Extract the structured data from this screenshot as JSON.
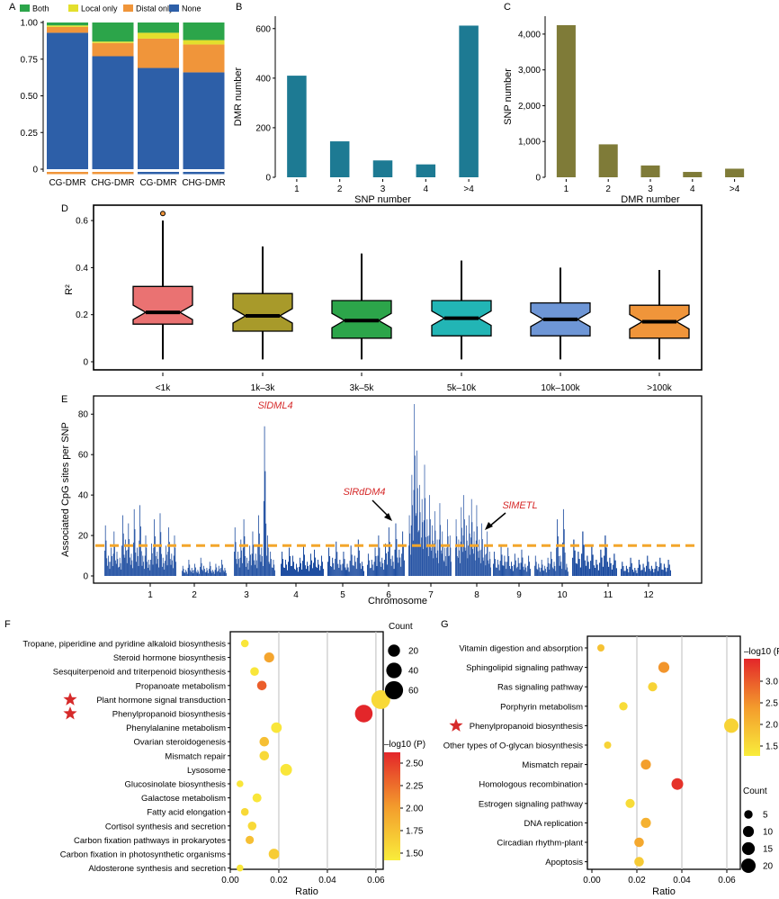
{
  "panels": {
    "A": "A",
    "B": "B",
    "C": "C",
    "D": "D",
    "E": "E",
    "F": "F",
    "G": "G"
  },
  "chart_data": [
    {
      "panel": "A",
      "type": "bar",
      "stacked": true,
      "legend": [
        "Both",
        "Local only",
        "Distal only",
        "None"
      ],
      "legend_placement": "top",
      "colors": {
        "Both": "#2ca54a",
        "Local only": "#e3df2d",
        "Distal only": "#f0953a",
        "None": "#2d5fa8"
      },
      "categories": [
        "CG-DMR",
        "CHG-DMR",
        "CG-DMR",
        "CHG-DMR"
      ],
      "group_underline_colors": [
        "#f0953a",
        "#f0953a",
        "#2d5fa8",
        "#2d5fa8"
      ],
      "series": [
        {
          "name": "None",
          "values": [
            0.93,
            0.77,
            0.69,
            0.66
          ]
        },
        {
          "name": "Distal only",
          "values": [
            0.04,
            0.09,
            0.2,
            0.19
          ]
        },
        {
          "name": "Local only",
          "values": [
            0.01,
            0.01,
            0.04,
            0.03
          ]
        },
        {
          "name": "Both",
          "values": [
            0.02,
            0.13,
            0.07,
            0.12
          ]
        }
      ],
      "ylim": [
        0,
        1
      ],
      "yticks": [
        "0",
        "0.25",
        "0.50",
        "0.75",
        "1.00"
      ]
    },
    {
      "panel": "B",
      "type": "bar",
      "color": "#1d7a93",
      "categories": [
        "1",
        "2",
        "3",
        "4",
        ">4"
      ],
      "values": [
        410,
        145,
        68,
        52,
        612
      ],
      "xlabel": "SNP number",
      "ylabel": "DMR number",
      "ylim": [
        0,
        650
      ],
      "yticks": [
        "0",
        "200",
        "400",
        "600"
      ]
    },
    {
      "panel": "C",
      "type": "bar",
      "color": "#7f7b38",
      "categories": [
        "1",
        "2",
        "3",
        "4",
        ">4"
      ],
      "values": [
        4250,
        920,
        330,
        150,
        240
      ],
      "xlabel": "DMR number",
      "ylabel": "SNP number",
      "ylim": [
        0,
        4500
      ],
      "yticks": [
        "0",
        "1,000",
        "2,000",
        "3,000",
        "4,000"
      ]
    },
    {
      "panel": "D",
      "type": "box",
      "ylabel": "R²",
      "ylim": [
        0,
        0.65
      ],
      "yticks": [
        "0",
        "0.2",
        "0.4",
        "0.6"
      ],
      "categories": [
        "<1k",
        "1k–3k",
        "3k–5k",
        "5k–10k",
        "10k–100k",
        ">100k"
      ],
      "colors": [
        "#ea7272",
        "#a89a2a",
        "#2ca54a",
        "#22b5b5",
        "#6e96d6",
        "#f0953a"
      ],
      "boxes": [
        {
          "min": 0.01,
          "q1": 0.16,
          "median": 0.21,
          "q3": 0.32,
          "max": 0.6
        },
        {
          "min": 0.01,
          "q1": 0.13,
          "median": 0.195,
          "q3": 0.29,
          "max": 0.49
        },
        {
          "min": 0.01,
          "q1": 0.1,
          "median": 0.175,
          "q3": 0.26,
          "max": 0.46
        },
        {
          "min": 0.01,
          "q1": 0.11,
          "median": 0.185,
          "q3": 0.26,
          "max": 0.43
        },
        {
          "min": 0.01,
          "q1": 0.11,
          "median": 0.18,
          "q3": 0.25,
          "max": 0.4
        },
        {
          "min": 0.01,
          "q1": 0.1,
          "median": 0.17,
          "q3": 0.24,
          "max": 0.39
        }
      ],
      "outliers": [
        {
          "group": 0,
          "value": 0.63
        }
      ]
    },
    {
      "panel": "E",
      "type": "bar",
      "chart_style": "manhattan",
      "color": "#1f4ea1",
      "xlabel": "Chromosome",
      "ylabel": "Associated CpG sites per SNP",
      "ylim": [
        0,
        85
      ],
      "yticks": [
        "0",
        "20",
        "40",
        "60",
        "80"
      ],
      "categories": [
        "1",
        "2",
        "3",
        "4",
        "5",
        "6",
        "7",
        "8",
        "9",
        "10",
        "11",
        "12"
      ],
      "threshold": 15,
      "threshold_color": "#f3a62b",
      "peaks": [
        {
          "chromosome": "1",
          "values": [
            25,
            10,
            14,
            22,
            12,
            9,
            30,
            18,
            26,
            11,
            33,
            14,
            35,
            10,
            20,
            8,
            16,
            28,
            12,
            31,
            9,
            15,
            24,
            11,
            20
          ]
        },
        {
          "chromosome": "2",
          "values": [
            5,
            3,
            8,
            4,
            6,
            3,
            9,
            5,
            4,
            7,
            3,
            6,
            5,
            8,
            4
          ]
        },
        {
          "chromosome": "3",
          "values": [
            24,
            12,
            18,
            28,
            9,
            15,
            22,
            11,
            30,
            14,
            74,
            20,
            12,
            8
          ]
        },
        {
          "chromosome": "4",
          "values": [
            12,
            8,
            14,
            10,
            6,
            9,
            15,
            7,
            11,
            13,
            8,
            10
          ]
        },
        {
          "chromosome": "5",
          "values": [
            14,
            9,
            17,
            8,
            12,
            6,
            15,
            10,
            18,
            7
          ]
        },
        {
          "chromosome": "6",
          "values": [
            11,
            8,
            14,
            20,
            9,
            16,
            24,
            10,
            26,
            13,
            22
          ]
        },
        {
          "chromosome": "7",
          "values": [
            30,
            50,
            85,
            62,
            45,
            38,
            55,
            28,
            40,
            25,
            32,
            18,
            36,
            22,
            14,
            28,
            20
          ]
        },
        {
          "chromosome": "8",
          "values": [
            28,
            18,
            34,
            40,
            25,
            30,
            38,
            22,
            35,
            18,
            26,
            15,
            22,
            12
          ]
        },
        {
          "chromosome": "9",
          "values": [
            12,
            8,
            15,
            10,
            14,
            7,
            11,
            9,
            13,
            6,
            10
          ]
        },
        {
          "chromosome": "10",
          "values": [
            10,
            6,
            8,
            5,
            9,
            12,
            7,
            28,
            10,
            33,
            6
          ]
        },
        {
          "chromosome": "11",
          "values": [
            18,
            12,
            22,
            10,
            15,
            8,
            13,
            20,
            9,
            11
          ]
        },
        {
          "chromosome": "12",
          "values": [
            7,
            5,
            9,
            4,
            8,
            6,
            10,
            5,
            7,
            9,
            6,
            8
          ]
        }
      ],
      "annotations": [
        {
          "text": "SlDML4",
          "chromosome": "3",
          "value": 74
        },
        {
          "text": "SlRdDM4",
          "chromosome": "6",
          "value": 25
        },
        {
          "text": "SlMETL",
          "chromosome": "8",
          "value": 22
        }
      ],
      "annotation_color": "#d62a2a"
    },
    {
      "panel": "F",
      "type": "scatter",
      "chart_style": "bubble",
      "xlabel": "Ratio",
      "xlim": [
        0,
        0.063
      ],
      "xticks": [
        "0.00",
        "0.02",
        "0.04",
        "0.06"
      ],
      "categories": [
        "Tropane, piperidine and pyridine alkaloid biosynthesis",
        "Steroid hormone biosynthesis",
        "Sesquiterpenoid and triterpenoid biosynthesis",
        "Propanoate metabolism",
        "Plant hormone signal transduction",
        "Phenylpropanoid biosynthesis",
        "Phenylalanine metabolism",
        "Ovarian steroidogenesis",
        "Mismatch repair",
        "Lysosome",
        "Glucosinolate biosynthesis",
        "Galactose metabolism",
        "Fatty acid elongation",
        "Cortisol synthesis and secretion",
        "Carbon fixation pathways in prokaryotes",
        "Carbon fixation in photosynthetic organisms",
        "Aldosterone synthesis and secretion"
      ],
      "starred": [
        "Plant hormone signal transduction",
        "Phenylpropanoid biosynthesis"
      ],
      "ratio": [
        0.006,
        0.016,
        0.01,
        0.013,
        0.062,
        0.055,
        0.019,
        0.014,
        0.014,
        0.023,
        0.004,
        0.011,
        0.006,
        0.009,
        0.008,
        0.018,
        0.004
      ],
      "count": [
        5,
        12,
        7,
        10,
        65,
        55,
        14,
        10,
        10,
        18,
        3,
        8,
        5,
        7,
        6,
        14,
        3
      ],
      "neg_log10_p": [
        1.4,
        1.9,
        1.4,
        2.3,
        1.5,
        2.6,
        1.4,
        1.7,
        1.5,
        1.4,
        1.4,
        1.4,
        1.5,
        1.5,
        1.7,
        1.6,
        1.4
      ],
      "size_legend_title": "Count",
      "size_legend": [
        "20",
        "40",
        "60"
      ],
      "size_legend_values": [
        20,
        40,
        60
      ],
      "color_legend_title": "–log10 (P)",
      "color_legend_ticks": [
        "2.50",
        "2.25",
        "2.00",
        "1.75",
        "1.50"
      ],
      "color_range": [
        1.35,
        2.6
      ],
      "colors": {
        "low": "#f9ed3b",
        "high": "#e3262a"
      }
    },
    {
      "panel": "G",
      "type": "scatter",
      "chart_style": "bubble",
      "xlabel": "Ratio",
      "xlim": [
        -0.002,
        0.066
      ],
      "xticks": [
        "0.00",
        "0.02",
        "0.04",
        "0.06"
      ],
      "categories": [
        "Vitamin digestion and absorption",
        "Sphingolipid signaling pathway",
        "Ras signaling pathway",
        "Porphyrin metabolism",
        "Phenylpropanoid biosynthesis",
        "Other types of O-glycan biosynthesis",
        "Mismatch repair",
        "Homologous recombination",
        "Estrogen signaling pathway",
        "DNA replication",
        "Circadian rhythm-plant",
        "Apoptosis"
      ],
      "starred": [
        "Phenylpropanoid biosynthesis"
      ],
      "ratio": [
        0.004,
        0.032,
        0.027,
        0.014,
        0.062,
        0.007,
        0.024,
        0.038,
        0.017,
        0.024,
        0.021,
        0.021
      ],
      "count": [
        3,
        10,
        6,
        5,
        20,
        3,
        8,
        12,
        6,
        8,
        7,
        7
      ],
      "neg_log10_p": [
        1.8,
        2.3,
        1.6,
        1.5,
        1.6,
        1.6,
        2.2,
        3.1,
        1.5,
        2.0,
        2.1,
        1.7
      ],
      "size_legend_title": "Count",
      "size_legend": [
        "5",
        "10",
        "15",
        "20"
      ],
      "size_legend_values": [
        5,
        10,
        15,
        20
      ],
      "color_legend_title": "–log10 (P)",
      "color_legend_ticks": [
        "3.0",
        "2.5",
        "2.0",
        "1.5"
      ],
      "color_range": [
        1.3,
        3.2
      ],
      "colors": {
        "low": "#f9ed3b",
        "high": "#e3262a"
      }
    }
  ]
}
